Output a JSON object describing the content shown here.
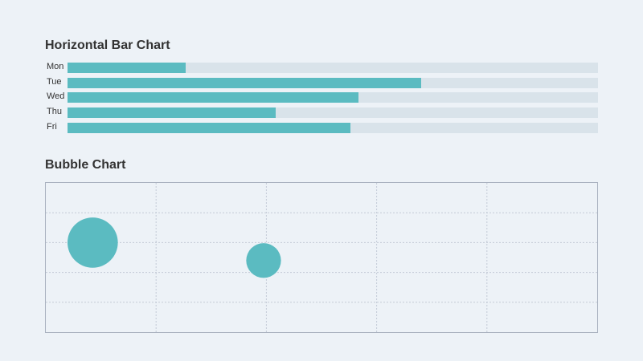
{
  "chart_data": [
    {
      "type": "bar",
      "orientation": "horizontal",
      "title": "Horizontal Bar Chart",
      "categories": [
        "Mon",
        "Tue",
        "Wed",
        "Thu",
        "Fri"
      ],
      "values": [
        22.3,
        66.7,
        54.9,
        39.3,
        53.4
      ],
      "xlim": [
        0,
        100
      ],
      "colors": {
        "bar": "#5bbbc1",
        "track": "#d9e3ea"
      }
    },
    {
      "type": "scatter",
      "variant": "bubble",
      "title": "Bubble Chart",
      "xlim": [
        0,
        100
      ],
      "ylim": [
        0,
        100
      ],
      "grid": true,
      "points": [
        {
          "x": 8.5,
          "y": 60,
          "r": 5.5
        },
        {
          "x": 39.5,
          "y": 48,
          "r": 3.8
        }
      ],
      "colors": {
        "bubble": "#5bbbc1",
        "grid": "#c3cad6",
        "border": "#aab2c0"
      }
    }
  ]
}
